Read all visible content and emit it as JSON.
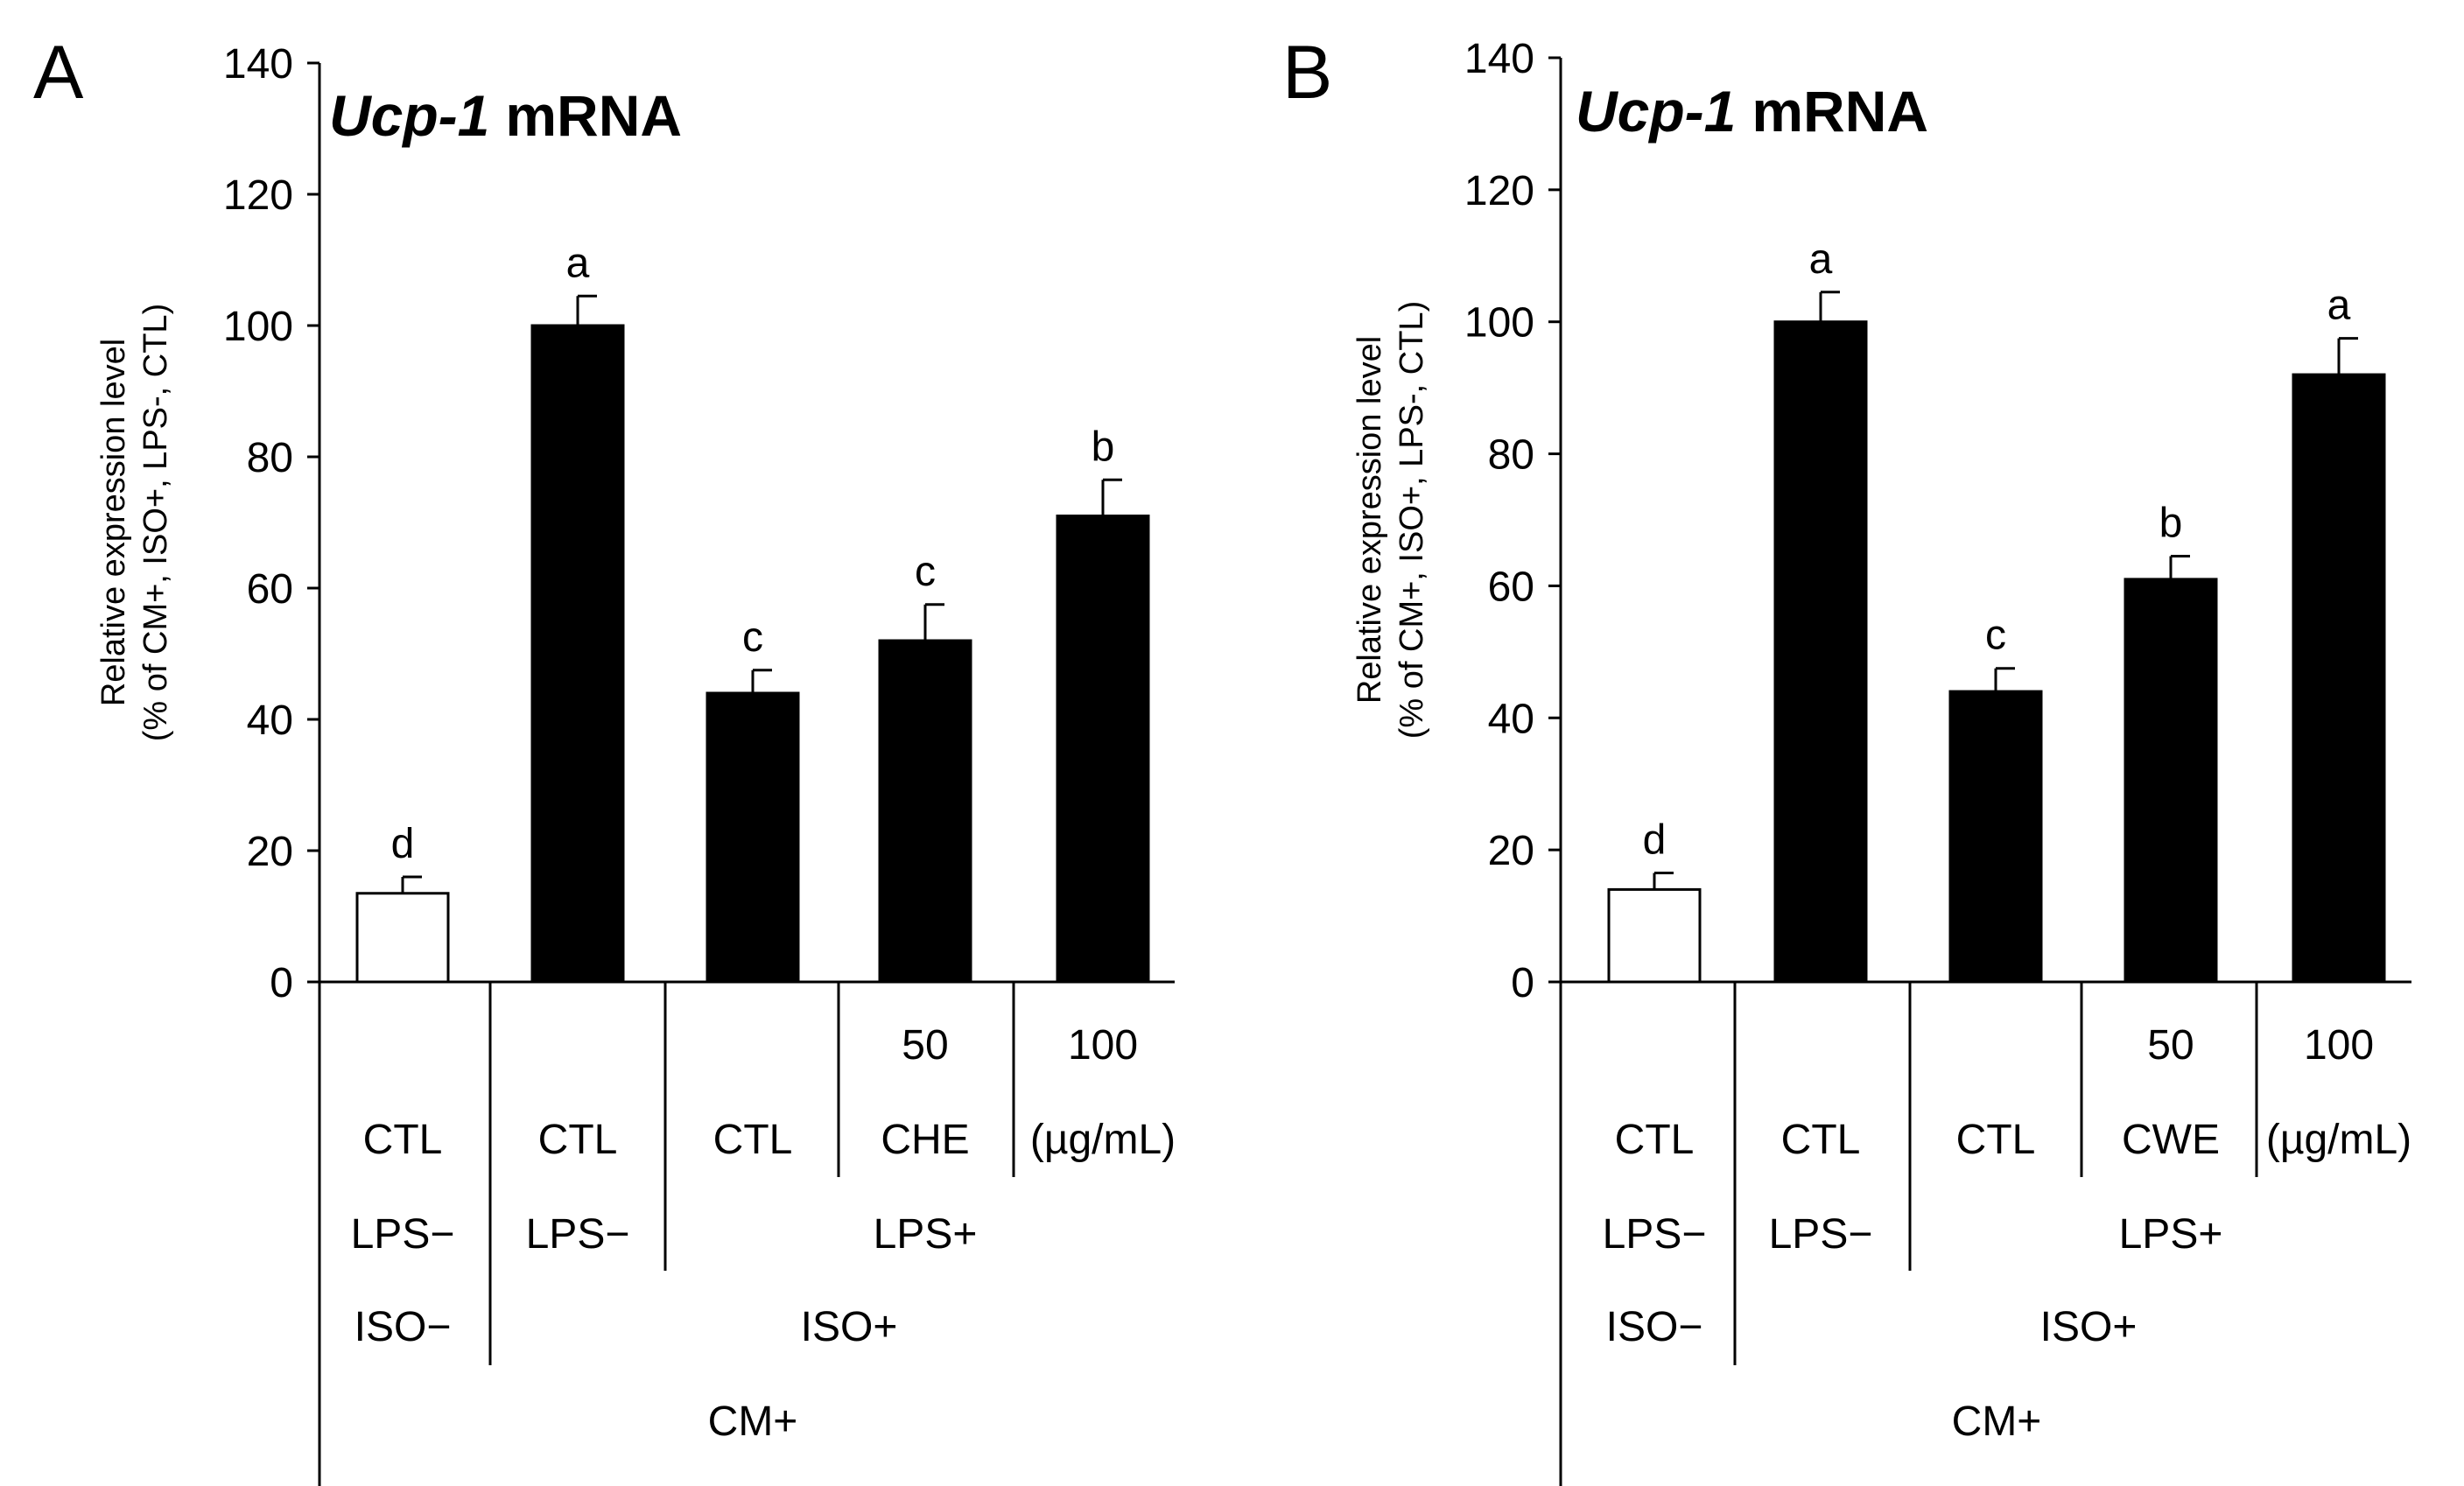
{
  "chart_data": [
    {
      "type": "bar",
      "panel_label": "A",
      "title_gene": "Ucp-1",
      "title_rest": "mRNA",
      "ylabel_line1": "Relative expression level",
      "ylabel_line2": "(% of CM+, ISO+, LPS-, CTL)",
      "ylim": [
        0,
        140
      ],
      "yticks": [
        0,
        20,
        40,
        60,
        80,
        100,
        120,
        140
      ],
      "bars": [
        {
          "value": 13.5,
          "error": 2.5,
          "letter": "d",
          "fill": "white"
        },
        {
          "value": 100,
          "error": 4.5,
          "letter": "a",
          "fill": "black"
        },
        {
          "value": 44,
          "error": 3.5,
          "letter": "c",
          "fill": "black"
        },
        {
          "value": 52,
          "error": 5.5,
          "letter": "c",
          "fill": "black"
        },
        {
          "value": 71,
          "error": 5.5,
          "letter": "b",
          "fill": "black"
        }
      ],
      "conditions": {
        "dose_50": "50",
        "dose_100": "100",
        "ctl": "CTL",
        "extract": "CHE",
        "unit": "(µg/mL)",
        "lps_minus": "LPS−",
        "lps_plus": "LPS+",
        "iso_minus": "ISO−",
        "iso_plus": "ISO+",
        "cm_plus": "CM+"
      }
    },
    {
      "type": "bar",
      "panel_label": "B",
      "title_gene": "Ucp-1",
      "title_rest": "mRNA",
      "ylabel_line1": "Relative expression level",
      "ylabel_line2": "(% of CM+, ISO+, LPS-, CTL)",
      "ylim": [
        0,
        140
      ],
      "yticks": [
        0,
        20,
        40,
        60,
        80,
        100,
        120,
        140
      ],
      "bars": [
        {
          "value": 14,
          "error": 2.5,
          "letter": "d",
          "fill": "white"
        },
        {
          "value": 100,
          "error": 4.5,
          "letter": "a",
          "fill": "black"
        },
        {
          "value": 44,
          "error": 3.5,
          "letter": "c",
          "fill": "black"
        },
        {
          "value": 61,
          "error": 3.5,
          "letter": "b",
          "fill": "black"
        },
        {
          "value": 92,
          "error": 5.5,
          "letter": "a",
          "fill": "black"
        }
      ],
      "conditions": {
        "dose_50": "50",
        "dose_100": "100",
        "ctl": "CTL",
        "extract": "CWE",
        "unit": "(µg/mL)",
        "lps_minus": "LPS−",
        "lps_plus": "LPS+",
        "iso_minus": "ISO−",
        "iso_plus": "ISO+",
        "cm_plus": "CM+"
      }
    }
  ]
}
